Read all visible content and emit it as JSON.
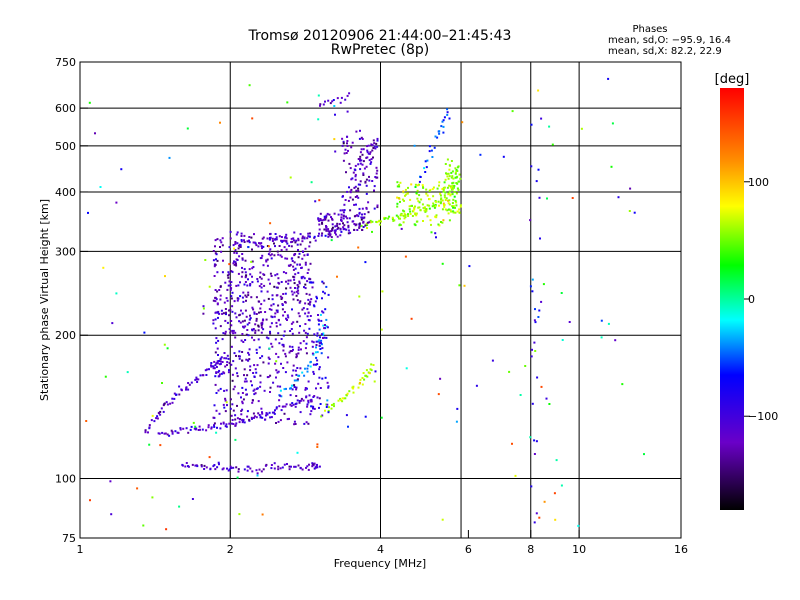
{
  "chart_data": {
    "type": "scatter",
    "title": "Tromsø 20120906 21:44:00–21:45:43",
    "subtitle": "RwPretec (8p)",
    "xlabel": "Frequency [MHz]",
    "ylabel": "Stationary phase Virtual Height [km]",
    "x_scale": "log",
    "y_scale": "log",
    "xlim": [
      1,
      16
    ],
    "ylim": [
      75,
      750
    ],
    "x_ticks": [
      1,
      2,
      4,
      6,
      8,
      10,
      16
    ],
    "x_tick_labels": [
      "1",
      "2",
      "4",
      "6",
      "8",
      "10",
      "16"
    ],
    "x_gridlines": [
      2,
      4,
      5.8,
      8,
      10
    ],
    "y_ticks": [
      75,
      100,
      200,
      300,
      400,
      500,
      600,
      750
    ],
    "y_tick_labels": [
      "75",
      "100",
      "200",
      "300",
      "400",
      "500",
      "600",
      "750"
    ],
    "grid": true,
    "stats": {
      "heading": "Phases",
      "line_o": "mean, sd,O: −95.9, 16.4",
      "line_x": "mean, sd,X:  82.2, 22.9"
    },
    "colorbar": {
      "label": "[deg]",
      "range": [
        -180,
        180
      ],
      "ticks": [
        100,
        0,
        -100
      ],
      "tick_labels": [
        "100",
        "0",
        "−100"
      ]
    },
    "traces": [
      {
        "x": [
          1.45,
          1.6,
          1.8,
          2.0,
          2.2,
          2.4,
          2.7,
          3.0
        ],
        "y": [
          123,
          126,
          128,
          130,
          134,
          138,
          144,
          148
        ],
        "phase": -105
      },
      {
        "x": [
          1.35,
          1.45,
          1.55,
          1.7,
          1.85,
          1.95
        ],
        "y": [
          124,
          138,
          150,
          160,
          172,
          180
        ],
        "phase": -110
      },
      {
        "x": [
          1.6,
          1.8,
          2.0,
          2.3,
          2.6,
          2.9,
          3.0
        ],
        "y": [
          107,
          106,
          105,
          105,
          106,
          106,
          107
        ],
        "phase": -112
      },
      {
        "x": [
          2.05,
          2.4,
          2.8,
          3.1,
          3.4,
          3.7
        ],
        "y": [
          312,
          318,
          320,
          325,
          332,
          340
        ],
        "phase": -110
      },
      {
        "x": [
          3.7,
          4.1,
          4.5,
          4.9,
          5.3,
          5.6,
          5.75
        ],
        "y": [
          340,
          348,
          360,
          370,
          385,
          410,
          450
        ],
        "phase": 70
      },
      {
        "x": [
          3.1,
          3.4,
          3.7,
          3.9
        ],
        "y": [
          140,
          148,
          162,
          172
        ],
        "phase": 80
      },
      {
        "x": [
          2.5,
          2.8,
          3.0,
          3.1
        ],
        "y": [
          150,
          165,
          185,
          215
        ],
        "phase": -40
      },
      {
        "x": [
          3.2,
          3.6,
          4.0
        ],
        "y": [
          320,
          450,
          520
        ],
        "phase": -115
      },
      {
        "x": [
          4.8,
          5.2,
          5.5
        ],
        "y": [
          420,
          520,
          600
        ],
        "phase": -60
      },
      {
        "x": [
          3.0,
          3.5
        ],
        "y": [
          610,
          640
        ],
        "phase": -115
      }
    ],
    "clusters": [
      {
        "x": [
          1.85,
          2.9
        ],
        "y": [
          200,
          330
        ],
        "phase": -115,
        "count": 480
      },
      {
        "x": [
          1.85,
          2.9
        ],
        "y": [
          130,
          200
        ],
        "phase": -110,
        "count": 260
      },
      {
        "x": [
          2.9,
          3.15
        ],
        "y": [
          135,
          260
        ],
        "phase": -95,
        "count": 80
      },
      {
        "x": [
          3.35,
          3.95
        ],
        "y": [
          360,
          540
        ],
        "phase": -118,
        "count": 110
      },
      {
        "x": [
          4.3,
          5.6
        ],
        "y": [
          340,
          420
        ],
        "phase": 75,
        "count": 120
      },
      {
        "x": [
          5.4,
          5.8
        ],
        "y": [
          360,
          470
        ],
        "phase": 65,
        "count": 60
      },
      {
        "x": [
          3.0,
          3.8
        ],
        "y": [
          330,
          360
        ],
        "phase": -120,
        "count": 90
      },
      {
        "x": [
          8.0,
          8.4
        ],
        "y": [
          80,
          600
        ],
        "phase": -80,
        "count": 25
      },
      {
        "x": [
          1.0,
          14.0
        ],
        "y": [
          75,
          700
        ],
        "phase": 0,
        "count": 160,
        "spread_phase": true
      }
    ]
  }
}
